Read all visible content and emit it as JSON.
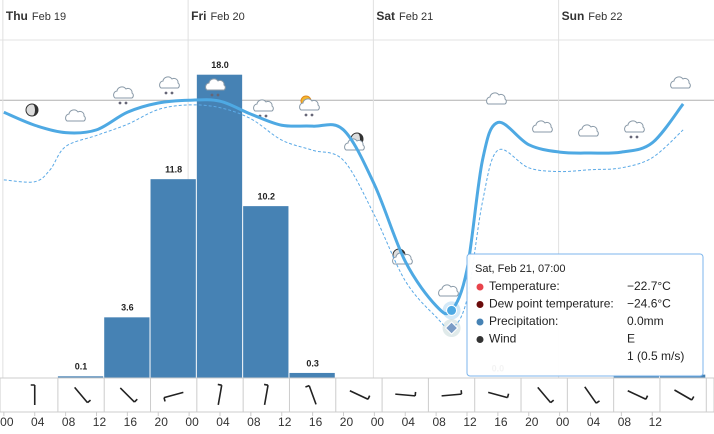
{
  "chart_data": {
    "type": "meteogram",
    "days": [
      {
        "weekday": "Thu",
        "date": "Feb 19"
      },
      {
        "weekday": "Fri",
        "date": "Feb 20"
      },
      {
        "weekday": "Sat",
        "date": "Feb 21"
      },
      {
        "weekday": "Sun",
        "date": "Feb 22"
      }
    ],
    "xlim": [
      -0.5,
      92
    ],
    "xticks": [
      {
        "value": 0,
        "label": "00"
      },
      {
        "value": 4,
        "label": "04"
      },
      {
        "value": 8,
        "label": "08"
      },
      {
        "value": 12,
        "label": "12"
      },
      {
        "value": 16,
        "label": "16"
      },
      {
        "value": 20,
        "label": "20"
      },
      {
        "value": 24,
        "label": "00"
      },
      {
        "value": 28,
        "label": "04"
      },
      {
        "value": 32,
        "label": "08"
      },
      {
        "value": 36,
        "label": "12"
      },
      {
        "value": 40,
        "label": "16"
      },
      {
        "value": 44,
        "label": "20"
      },
      {
        "value": 48,
        "label": "00"
      },
      {
        "value": 52,
        "label": "04"
      },
      {
        "value": 56,
        "label": "08"
      },
      {
        "value": 60,
        "label": "12"
      },
      {
        "value": 64,
        "label": "16"
      },
      {
        "value": 68,
        "label": "20"
      },
      {
        "value": 72,
        "label": "00"
      },
      {
        "value": 76,
        "label": "04"
      },
      {
        "value": 80,
        "label": "08"
      },
      {
        "value": 84,
        "label": "12"
      }
    ],
    "temperature_ylim": [
      -30,
      6.4
    ],
    "precipitation_ylim": [
      0,
      20
    ],
    "temperature": {
      "color": "#4ea9e3",
      "x": [
        0,
        4,
        8,
        12,
        16,
        20,
        24,
        28,
        32,
        36,
        40,
        44,
        48,
        52,
        56,
        58,
        60,
        62,
        64,
        68,
        72,
        76,
        80,
        84,
        88
      ],
      "values": [
        -1.3,
        -2.7,
        -3.5,
        -3.2,
        -1.3,
        -0.3,
        0.0,
        -0.1,
        -1.5,
        -2.7,
        -2.8,
        -3.2,
        -9.1,
        -17.4,
        -22.2,
        -22.7,
        -18.3,
        -6.5,
        -2.4,
        -4.8,
        -5.6,
        -5.7,
        -5.6,
        -4.6,
        -0.4
      ]
    },
    "dew_point": {
      "color": "#5aa9e6",
      "x": [
        0,
        4,
        6,
        8,
        12,
        16,
        20,
        24,
        28,
        32,
        36,
        40,
        44,
        48,
        52,
        56,
        58,
        60,
        62,
        64,
        68,
        72,
        76,
        80,
        84,
        88
      ],
      "values": [
        -8.6,
        -8.8,
        -7.5,
        -5.0,
        -3.8,
        -2.6,
        -1.0,
        -0.5,
        -0.8,
        -2.0,
        -4.3,
        -5.4,
        -6.5,
        -12.4,
        -19.5,
        -23.4,
        -24.6,
        -21.5,
        -11.0,
        -5.4,
        -7.3,
        -7.7,
        -7.5,
        -7.3,
        -6.2,
        -3.2
      ]
    },
    "hover_index": {
      "temperature": 15,
      "dew_point": 16
    },
    "precipitation": {
      "color": "#4682b4",
      "bins": [
        7,
        13,
        19,
        25,
        31,
        37,
        43,
        49,
        55,
        61,
        67,
        73,
        79,
        85,
        91
      ],
      "values": [
        0.1,
        3.6,
        11.8,
        18.0,
        10.2,
        0.3,
        0,
        0,
        0,
        0.0,
        0,
        0,
        0.2,
        0.2
      ],
      "value_labels": [
        "0.1",
        "3.6",
        "11.8",
        "18.0",
        "10.2",
        "0.3",
        null,
        null,
        null,
        "0.0",
        null,
        null,
        null,
        null
      ]
    },
    "wind": {
      "x": [
        4,
        10,
        16,
        22,
        28,
        34,
        40,
        46,
        52,
        58,
        64,
        70,
        76,
        82,
        88
      ],
      "directions": [
        0,
        140,
        135,
        255,
        10,
        10,
        340,
        115,
        95,
        85,
        105,
        140,
        145,
        115,
        120
      ]
    },
    "tooltip": {
      "title": "Sat, Feb 21, 07:00",
      "rows": [
        {
          "label": "Temperature:",
          "value": "−22.7°C",
          "color": "#e8434b"
        },
        {
          "label": "Dew point temperature:",
          "value": "−24.6°C",
          "color": "#6b0b0b"
        },
        {
          "label": "Precipitation:",
          "value": "0.0mm",
          "color": "#4682b4"
        },
        {
          "label": "Wind",
          "value": "E",
          "color": "#333333"
        }
      ],
      "extra": "1 (0.5 m/s)"
    }
  }
}
